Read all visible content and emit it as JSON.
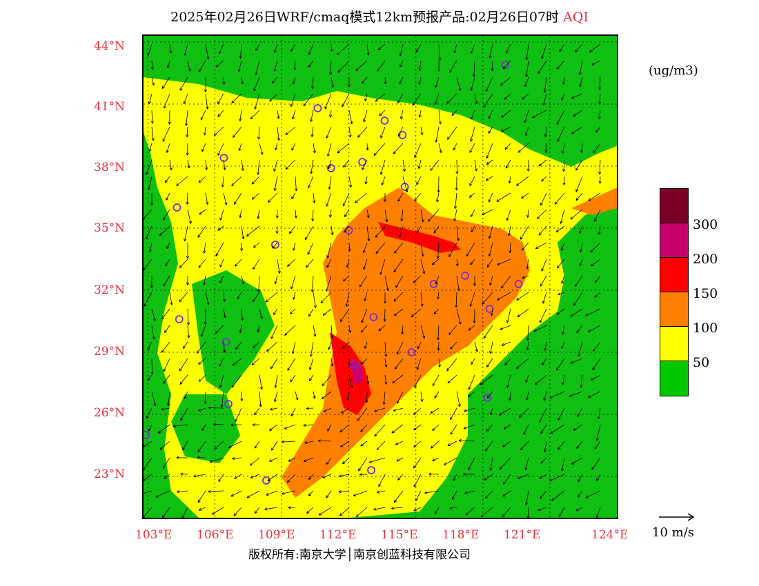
{
  "title": {
    "main": "2025年02月26日WRF/cmaq模式12km预报产品:02月26日07时",
    "field": "AQI"
  },
  "unit_label": "(ug/m3)",
  "lat_labels": [
    "44°N",
    "41°N",
    "38°N",
    "35°N",
    "32°N",
    "29°N",
    "26°N",
    "23°N"
  ],
  "lon_labels": [
    "103°E",
    "106°E",
    "109°E",
    "112°E",
    "115°E",
    "118°E",
    "121°E",
    "124°E"
  ],
  "legend": {
    "colors": [
      "#7a0024",
      "#c8006e",
      "#ff0000",
      "#ff8000",
      "#ffff00",
      "#00c800"
    ],
    "labels": [
      "300",
      "200",
      "150",
      "100",
      "50"
    ]
  },
  "wind_scale": {
    "label": "10 m/s"
  },
  "copyright": "版权所有:南京大学│南京创蓝科技有限公司",
  "map": {
    "extent": {
      "lon_min": 102.8,
      "lon_max": 124.0,
      "lat_min": 21.0,
      "lat_max": 44.3
    }
  },
  "city_markers": [
    {
      "lon": 119.0,
      "lat": 42.9
    },
    {
      "lon": 110.6,
      "lat": 40.8
    },
    {
      "lon": 113.6,
      "lat": 40.2
    },
    {
      "lon": 114.4,
      "lat": 39.5
    },
    {
      "lon": 106.4,
      "lat": 38.4
    },
    {
      "lon": 111.2,
      "lat": 37.9
    },
    {
      "lon": 112.6,
      "lat": 38.2
    },
    {
      "lon": 114.5,
      "lat": 37.0
    },
    {
      "lon": 104.3,
      "lat": 36.0
    },
    {
      "lon": 112.0,
      "lat": 34.9
    },
    {
      "lon": 108.7,
      "lat": 34.2
    },
    {
      "lon": 115.8,
      "lat": 32.3
    },
    {
      "lon": 117.2,
      "lat": 32.7
    },
    {
      "lon": 119.6,
      "lat": 32.3
    },
    {
      "lon": 118.3,
      "lat": 31.1
    },
    {
      "lon": 104.4,
      "lat": 30.6
    },
    {
      "lon": 113.1,
      "lat": 30.7
    },
    {
      "lon": 106.5,
      "lat": 29.5
    },
    {
      "lon": 114.8,
      "lat": 29.0
    },
    {
      "lon": 112.2,
      "lat": 28.4
    },
    {
      "lon": 106.6,
      "lat": 26.5
    },
    {
      "lon": 118.2,
      "lat": 26.8
    },
    {
      "lon": 102.9,
      "lat": 25.0
    },
    {
      "lon": 108.3,
      "lat": 22.8
    },
    {
      "lon": 113.0,
      "lat": 23.3
    }
  ]
}
